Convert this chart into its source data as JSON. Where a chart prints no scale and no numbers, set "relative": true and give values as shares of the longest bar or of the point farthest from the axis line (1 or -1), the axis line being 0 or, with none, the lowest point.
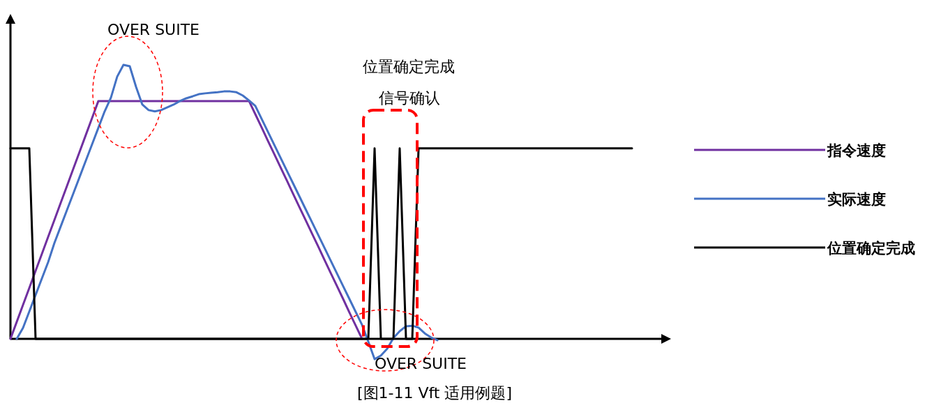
{
  "chart_data": {
    "type": "line",
    "relative": true,
    "legend": "right",
    "categories": [
      null,
      null,
      null,
      null,
      null,
      null,
      null,
      null,
      null,
      null,
      null,
      null,
      null,
      null,
      null,
      null,
      null,
      null,
      null,
      null,
      null,
      null,
      null,
      null,
      null,
      null,
      null,
      null,
      null,
      null,
      null,
      null,
      null,
      null,
      null,
      null,
      null,
      null,
      null,
      null,
      null,
      null,
      null,
      null,
      null,
      null,
      null,
      null,
      null,
      null,
      null,
      null,
      null,
      null,
      null,
      null,
      null,
      null,
      null,
      null,
      null,
      null,
      null,
      null,
      null,
      null,
      null,
      null,
      null,
      null,
      null,
      null,
      null,
      null,
      null,
      null,
      null,
      null,
      null,
      null,
      null,
      null,
      null,
      null,
      null,
      null,
      null,
      null,
      null,
      null,
      null,
      null,
      null,
      null,
      null,
      null,
      null,
      null,
      null,
      null
    ],
    "series": [
      {
        "name": "指令速度",
        "color": "#7030a0",
        "values": [
          0,
          0.062,
          0.124,
          0.186,
          0.248,
          0.31,
          0.372,
          0.434,
          0.496,
          0.558,
          0.62,
          0.682,
          0.744,
          0.806,
          0.868,
          0.868,
          0.868,
          0.868,
          0.868,
          0.868,
          0.868,
          0.868,
          0.868,
          0.868,
          0.868,
          0.868,
          0.868,
          0.868,
          0.868,
          0.868,
          0.868,
          0.868,
          0.868,
          0.868,
          0.868,
          0.868,
          0.868,
          0.868,
          0.868,
          0.82,
          0.772,
          0.723,
          0.675,
          0.627,
          0.579,
          0.53,
          0.482,
          0.434,
          0.386,
          0.338,
          0.289,
          0.241,
          0.193,
          0.145,
          0.096,
          0.048,
          0,
          null,
          null,
          null,
          null,
          null,
          null,
          null,
          null,
          null,
          null,
          null,
          null,
          null,
          null,
          null,
          null,
          null,
          null,
          null,
          null,
          null,
          null,
          null,
          null,
          null,
          null,
          null,
          null,
          null,
          null,
          null,
          null,
          null,
          null,
          null,
          null,
          null,
          null,
          null,
          null,
          null,
          null,
          null
        ]
      },
      {
        "name": "实际速度",
        "color": "#4472c4",
        "values": [
          null,
          0,
          0.04,
          0.1,
          0.16,
          0.22,
          0.28,
          0.35,
          0.41,
          0.47,
          0.53,
          0.59,
          0.65,
          0.71,
          0.77,
          0.83,
          0.88,
          0.957,
          1,
          0.995,
          0.92,
          0.855,
          0.835,
          0.83,
          0.835,
          0.845,
          0.855,
          0.868,
          0.878,
          0.885,
          0.893,
          0.896,
          0.898,
          0.9,
          0.903,
          0.903,
          0.9,
          0.888,
          0.87,
          0.85,
          0.803,
          0.756,
          0.709,
          0.662,
          0.615,
          0.568,
          0.521,
          0.474,
          0.427,
          0.38,
          0.333,
          0.286,
          0.239,
          0.192,
          0.145,
          0.098,
          0.051,
          -0.01,
          -0.074,
          -0.061,
          -0.036,
          0.003,
          0.028,
          0.046,
          0.048,
          0.041,
          0.02,
          0.005,
          -0.005,
          null,
          null,
          null,
          null,
          null,
          null,
          null,
          null,
          null,
          null,
          null,
          null,
          null,
          null,
          null,
          null,
          null,
          null,
          null,
          null,
          null,
          null,
          null,
          null,
          null,
          null,
          null,
          null,
          null,
          null,
          null
        ]
      },
      {
        "name": "位置确定完成",
        "color": "#000000",
        "values": [
          0.695,
          0.695,
          0.695,
          0.695,
          0,
          0,
          0,
          0,
          0,
          0,
          0,
          0,
          0,
          0,
          0,
          0,
          0,
          0,
          0,
          0,
          0,
          0,
          0,
          0,
          0,
          0,
          0,
          0,
          0,
          0,
          0,
          0,
          0,
          0,
          0,
          0,
          0,
          0,
          0,
          0,
          0,
          0,
          0,
          0,
          0,
          0,
          0,
          0,
          0,
          0,
          0,
          0,
          0,
          0,
          0,
          0,
          0,
          0,
          0.695,
          0,
          0,
          0,
          0.695,
          0,
          0,
          0.695,
          0.695,
          0.695,
          0.695,
          0.695,
          0.695,
          0.695,
          0.695,
          0.695,
          0.695,
          0.695,
          0.695,
          0.695,
          0.695,
          0.695,
          0.695,
          0.695,
          0.695,
          0.695,
          0.695,
          0.695,
          0.695,
          0.695,
          0.695,
          0.695,
          0.695,
          0.695,
          0.695,
          0.695,
          0.695,
          0.695,
          0.695,
          0.695,
          0.695,
          0.695
        ]
      }
    ],
    "annotations": [
      "OVER  SUITE",
      "位置确定完成",
      "信号确认",
      "OVER  SUITE",
      "[图1-11 Vft  适用例题]"
    ]
  }
}
